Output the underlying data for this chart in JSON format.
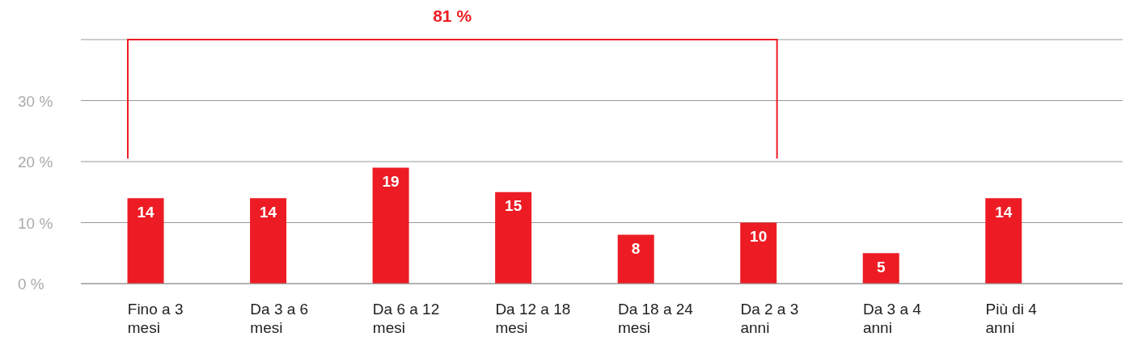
{
  "chart_data": {
    "type": "bar",
    "categories": [
      "Fino a 3 mesi",
      "Da 3 a 6 mesi",
      "Da 6 a 12 mesi",
      "Da 12 a 18 mesi",
      "Da 18 a 24 mesi",
      "Da 2 a 3 anni",
      "Da 3 a 4 anni",
      "Più di 4 anni"
    ],
    "values": [
      14,
      14,
      19,
      15,
      8,
      10,
      5,
      14
    ],
    "color": "#ed1c24",
    "ylim": [
      0,
      40
    ],
    "yticks": [
      {
        "value": 0,
        "label": "0 %"
      },
      {
        "value": 10,
        "label": "10 %"
      },
      {
        "value": 20,
        "label": "20 %"
      },
      {
        "value": 30,
        "label": "30 %"
      }
    ],
    "grid": "y",
    "data_labels": true,
    "annotations": [
      "81 %"
    ]
  }
}
